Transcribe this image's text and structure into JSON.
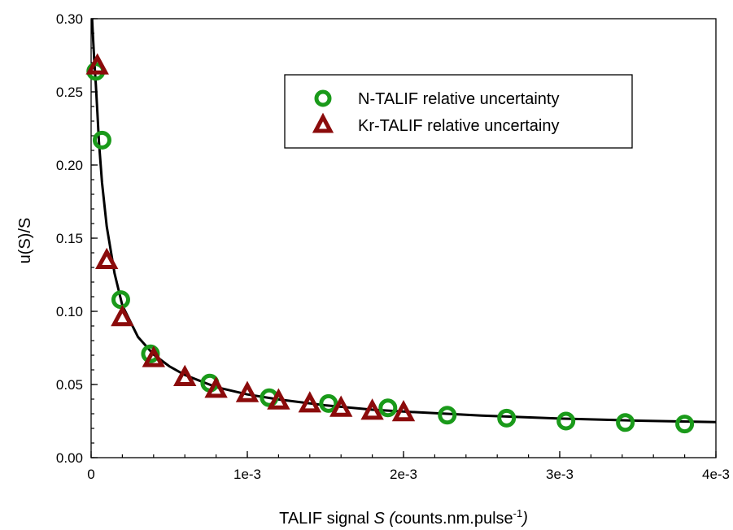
{
  "chart_data": {
    "type": "scatter",
    "title": "",
    "xlabel": {
      "prefix": "TALIF signal ",
      "symbol": "S",
      "paren_open": " (",
      "units": "counts.nm.pulse",
      "exponent": "-1",
      "paren_close": ")"
    },
    "ylabel": "u(S)/S",
    "xlim": [
      0,
      0.004
    ],
    "ylim": [
      0,
      0.3
    ],
    "x_ticks": [
      {
        "value": 0,
        "label": "0"
      },
      {
        "value": 0.001,
        "label": "1e-3"
      },
      {
        "value": 0.002,
        "label": "2e-3"
      },
      {
        "value": 0.003,
        "label": "3e-3"
      },
      {
        "value": 0.004,
        "label": "4e-3"
      }
    ],
    "x_minor_step": 0.0002,
    "y_ticks": [
      {
        "value": 0.0,
        "label": "0.00"
      },
      {
        "value": 0.05,
        "label": "0.05"
      },
      {
        "value": 0.1,
        "label": "0.10"
      },
      {
        "value": 0.15,
        "label": "0.15"
      },
      {
        "value": 0.2,
        "label": "0.20"
      },
      {
        "value": 0.25,
        "label": "0.25"
      },
      {
        "value": 0.3,
        "label": "0.30"
      }
    ],
    "y_minor_step": 0.01,
    "grid": false,
    "legend_position": "top-right",
    "series": [
      {
        "name": "N-TALIF relative uncertainty",
        "marker": "circle",
        "color": "#1a9a1a",
        "x": [
          3e-05,
          7e-05,
          0.00019,
          0.00038,
          0.00076,
          0.00114,
          0.00152,
          0.0019,
          0.00228,
          0.00266,
          0.00304,
          0.00342,
          0.0038
        ],
        "y": [
          0.264,
          0.217,
          0.108,
          0.071,
          0.051,
          0.041,
          0.037,
          0.034,
          0.029,
          0.027,
          0.025,
          0.024,
          0.023
        ]
      },
      {
        "name": "Kr-TALIF relative uncertainy",
        "marker": "triangle",
        "color": "#8b0b0b",
        "x": [
          4e-05,
          0.0001,
          0.0002,
          0.0004,
          0.0006,
          0.0008,
          0.001,
          0.0012,
          0.0014,
          0.0016,
          0.0018,
          0.002
        ],
        "y": [
          0.268,
          0.135,
          0.096,
          0.068,
          0.055,
          0.047,
          0.044,
          0.039,
          0.037,
          0.034,
          0.032,
          0.031
        ]
      }
    ],
    "fit_curve": {
      "color": "#000000",
      "x": [
        6e-06,
        1e-05,
        2e-05,
        3e-05,
        4e-05,
        5e-05,
        7e-05,
        0.0001,
        0.00015,
        0.0002,
        0.0003,
        0.0004,
        0.0005,
        0.0006,
        0.0008,
        0.001,
        0.0012,
        0.0015,
        0.0018,
        0.002,
        0.0025,
        0.003,
        0.0035,
        0.004
      ],
      "y": [
        0.3,
        0.292,
        0.272,
        0.255,
        0.236,
        0.216,
        0.188,
        0.158,
        0.126,
        0.104,
        0.0825,
        0.0705,
        0.0625,
        0.0565,
        0.0482,
        0.0432,
        0.0398,
        0.0358,
        0.0328,
        0.0315,
        0.0288,
        0.0267,
        0.0253,
        0.0243
      ]
    }
  }
}
